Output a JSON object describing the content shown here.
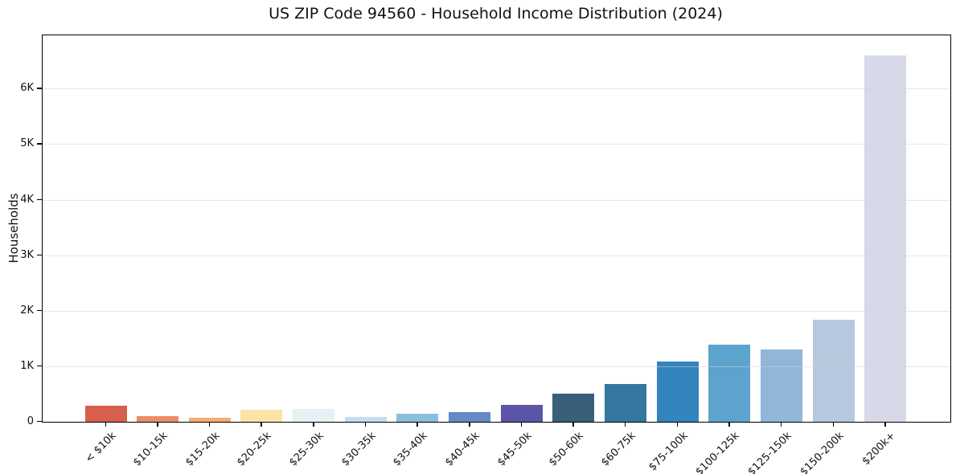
{
  "chart_data": {
    "type": "bar",
    "title": "US ZIP Code 94560 - Household Income Distribution (2024)",
    "xlabel": "",
    "ylabel": "Households",
    "categories": [
      "< $10k",
      "$10-15k",
      "$15-20k",
      "$20-25k",
      "$25-30k",
      "$30-35k",
      "$35-40k",
      "$40-45k",
      "$45-50k",
      "$50-60k",
      "$60-75k",
      "$75-100k",
      "$100-125k",
      "$125-150k",
      "$150-200k",
      "$200k+"
    ],
    "values": [
      285,
      105,
      80,
      215,
      230,
      85,
      145,
      175,
      310,
      510,
      680,
      1080,
      1390,
      1300,
      1840,
      6600
    ],
    "bar_colors": [
      "#d6604d",
      "#ea8c69",
      "#f5ad6e",
      "#fbe3a6",
      "#e7f1f4",
      "#c4dfeb",
      "#8abedb",
      "#6489c4",
      "#5a55a6",
      "#3a5f78",
      "#34779f",
      "#3383bd",
      "#5ca3ce",
      "#91b6d8",
      "#b7c8df",
      "#d7d9e8"
    ],
    "ytick_labels": [
      "0",
      "1K",
      "2K",
      "3K",
      "4K",
      "5K",
      "6K"
    ],
    "ytick_values": [
      0,
      1000,
      2000,
      3000,
      4000,
      5000,
      6000
    ],
    "ylim": [
      0,
      6960
    ],
    "grid": "horizontal-only",
    "legend": "none",
    "background_color": "#ffffff",
    "frame_color": "#000000"
  }
}
